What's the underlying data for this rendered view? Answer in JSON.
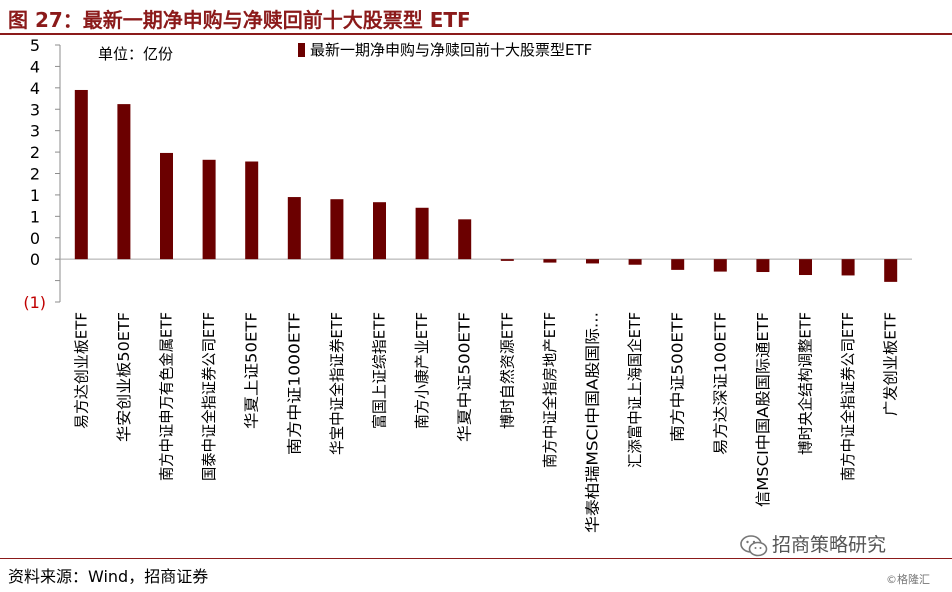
{
  "header": {
    "figure_title": "图 27：最新一期净申购与净赎回前十大股票型 ETF"
  },
  "footer": {
    "source": "资料来源：Wind，招商证券",
    "watermark": "招商策略研究",
    "watermark_small": "©格隆汇"
  },
  "chart_data": {
    "type": "bar",
    "unit_label": "单位：亿份",
    "legend": "最新一期净申购与净赎回前十大股票型ETF",
    "bar_color": "#6b0000",
    "ylim": [
      -1,
      5
    ],
    "yticks": [
      5,
      4.5,
      4,
      3.5,
      3,
      2.5,
      2,
      1.5,
      1,
      0.5,
      0,
      -0.5,
      -1
    ],
    "ytick_labels": [
      "5",
      "4",
      "4",
      "3",
      "3",
      "2",
      "2",
      "1",
      "1",
      "0",
      "0",
      "",
      "(1)"
    ],
    "categories": [
      "易方达创业板ETF",
      "华安创业板50ETF",
      "南方中证申万有色金属ETF",
      "国泰中证全指证券公司ETF",
      "华夏上证50ETF",
      "南方中证1000ETF",
      "华宝中证全指证券ETF",
      "富国上证综指ETF",
      "南方小康产业ETF",
      "华夏中证500ETF",
      "博时自然资源ETF",
      "南方中证全指房地产ETF",
      "华泰柏瑞MSCI中国A股国际...",
      "汇添富中证上海国企ETF",
      "南方中证500ETF",
      "易方达深证100ETF",
      "信MSCI中国A股国际通ETF",
      "博时央企结构调整ETF",
      "南方中证全指证券公司ETF",
      "广发创业板ETF"
    ],
    "values": [
      3.95,
      3.62,
      2.48,
      2.32,
      2.28,
      1.45,
      1.4,
      1.33,
      1.2,
      0.93,
      -0.04,
      -0.08,
      -0.1,
      -0.13,
      -0.25,
      -0.29,
      -0.3,
      -0.37,
      -0.38,
      -0.53
    ]
  }
}
